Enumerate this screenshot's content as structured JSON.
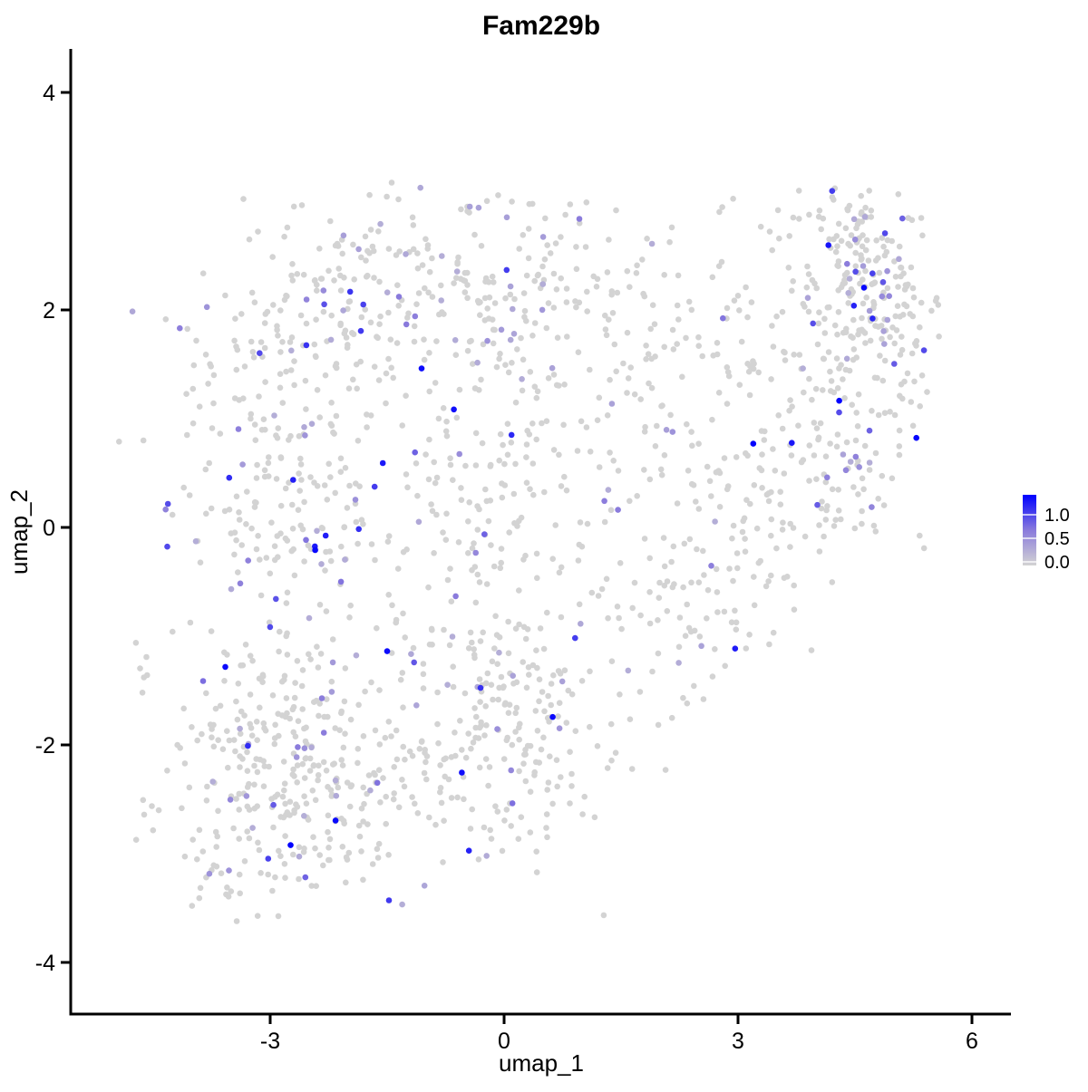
{
  "chart_data": {
    "type": "scatter",
    "title": "Fam229b",
    "xlabel": "umap_1",
    "ylabel": "umap_2",
    "x_ticks": [
      {
        "value": -3,
        "label": "-3"
      },
      {
        "value": 0,
        "label": "0"
      },
      {
        "value": 3,
        "label": "3"
      },
      {
        "value": 6,
        "label": "6"
      }
    ],
    "y_ticks": [
      {
        "value": -4,
        "label": "-4"
      },
      {
        "value": -2,
        "label": "-2"
      },
      {
        "value": 0,
        "label": "0"
      },
      {
        "value": 2,
        "label": "2"
      },
      {
        "value": 4,
        "label": "4"
      }
    ],
    "xlim": [
      -5.55,
      6.5
    ],
    "ylim": [
      -4.45,
      4.4
    ],
    "grid": false,
    "background": "#ffffff",
    "axis_color": "#000000",
    "point_radius_px": 3.3,
    "n_points": 1926,
    "seed": 42,
    "color_scale": {
      "low": "#D3D3D3",
      "mid": "#8A7BDC",
      "high": "#0000FF",
      "domain": [
        0,
        1.42
      ],
      "description": "expression: lightgrey (0) to blue (high), colored points drawn on top"
    },
    "colorbar": {
      "position": "right",
      "ticks": [
        {
          "label": "1.0",
          "value": 1.0
        },
        {
          "label": "0.5",
          "value": 0.5
        },
        {
          "label": "0.0",
          "value": 0.0
        }
      ]
    },
    "clusters": [
      {
        "name": "upper-left-cloud",
        "cx": -1.6,
        "cy": 2.1,
        "sx": 1.05,
        "sy": 0.55,
        "n": 210,
        "colored_frac": 0.17
      },
      {
        "name": "left-mid-column",
        "cx": -2.9,
        "cy": 0.3,
        "sx": 0.75,
        "sy": 0.85,
        "n": 235,
        "colored_frac": 0.14
      },
      {
        "name": "bottom-left-dense",
        "cx": -2.7,
        "cy": -2.3,
        "sx": 0.85,
        "sy": 0.65,
        "n": 340,
        "colored_frac": 0.11
      },
      {
        "name": "bottom-center",
        "cx": -0.2,
        "cy": -1.9,
        "sx": 0.85,
        "sy": 0.7,
        "n": 255,
        "colored_frac": 0.09
      },
      {
        "name": "mid-center",
        "cx": -0.1,
        "cy": 0.2,
        "sx": 0.8,
        "sy": 0.7,
        "n": 160,
        "colored_frac": 0.08
      },
      {
        "name": "center-top",
        "cx": 0.5,
        "cy": 2.1,
        "sx": 0.7,
        "sy": 0.55,
        "n": 120,
        "colored_frac": 0.13
      },
      {
        "name": "right-arm",
        "cx": 2.4,
        "cy": 1.1,
        "sx": 0.75,
        "sy": 0.65,
        "n": 105,
        "colored_frac": 0.08
      },
      {
        "name": "arm-low-1",
        "cx": 2.3,
        "cy": -1.0,
        "sx": 0.45,
        "sy": 0.4,
        "n": 45,
        "colored_frac": 0.07
      },
      {
        "name": "arm-low-2",
        "cx": 3.1,
        "cy": -0.1,
        "sx": 0.5,
        "sy": 0.45,
        "n": 55,
        "colored_frac": 0.07
      },
      {
        "name": "right-column",
        "cx": 4.1,
        "cy": 0.7,
        "sx": 0.5,
        "sy": 0.6,
        "n": 110,
        "colored_frac": 0.1
      },
      {
        "name": "top-right-dense",
        "cx": 4.7,
        "cy": 2.05,
        "sx": 0.45,
        "sy": 0.42,
        "n": 160,
        "colored_frac": 0.13
      },
      {
        "name": "top-right-apex",
        "cx": 4.4,
        "cy": 2.7,
        "sx": 0.3,
        "sy": 0.25,
        "n": 55,
        "colored_frac": 0.12
      },
      {
        "name": "top-band",
        "cx": 2.9,
        "cy": 2.35,
        "sx": 0.8,
        "sy": 0.4,
        "n": 45,
        "colored_frac": 0.08
      },
      {
        "name": "right-edge",
        "cx": 5.15,
        "cy": 1.2,
        "sx": 0.22,
        "sy": 0.55,
        "n": 25,
        "colored_frac": 0.08
      },
      {
        "name": "far-left-outliers",
        "cx": -4.65,
        "cy": -1.25,
        "sx": 0.09,
        "sy": 0.13,
        "n": 6,
        "colored_frac": 0.0
      }
    ],
    "point_bounds": {
      "xmin": -4.95,
      "xmax": 5.6,
      "ymin": -3.65,
      "ymax": 3.18
    }
  }
}
